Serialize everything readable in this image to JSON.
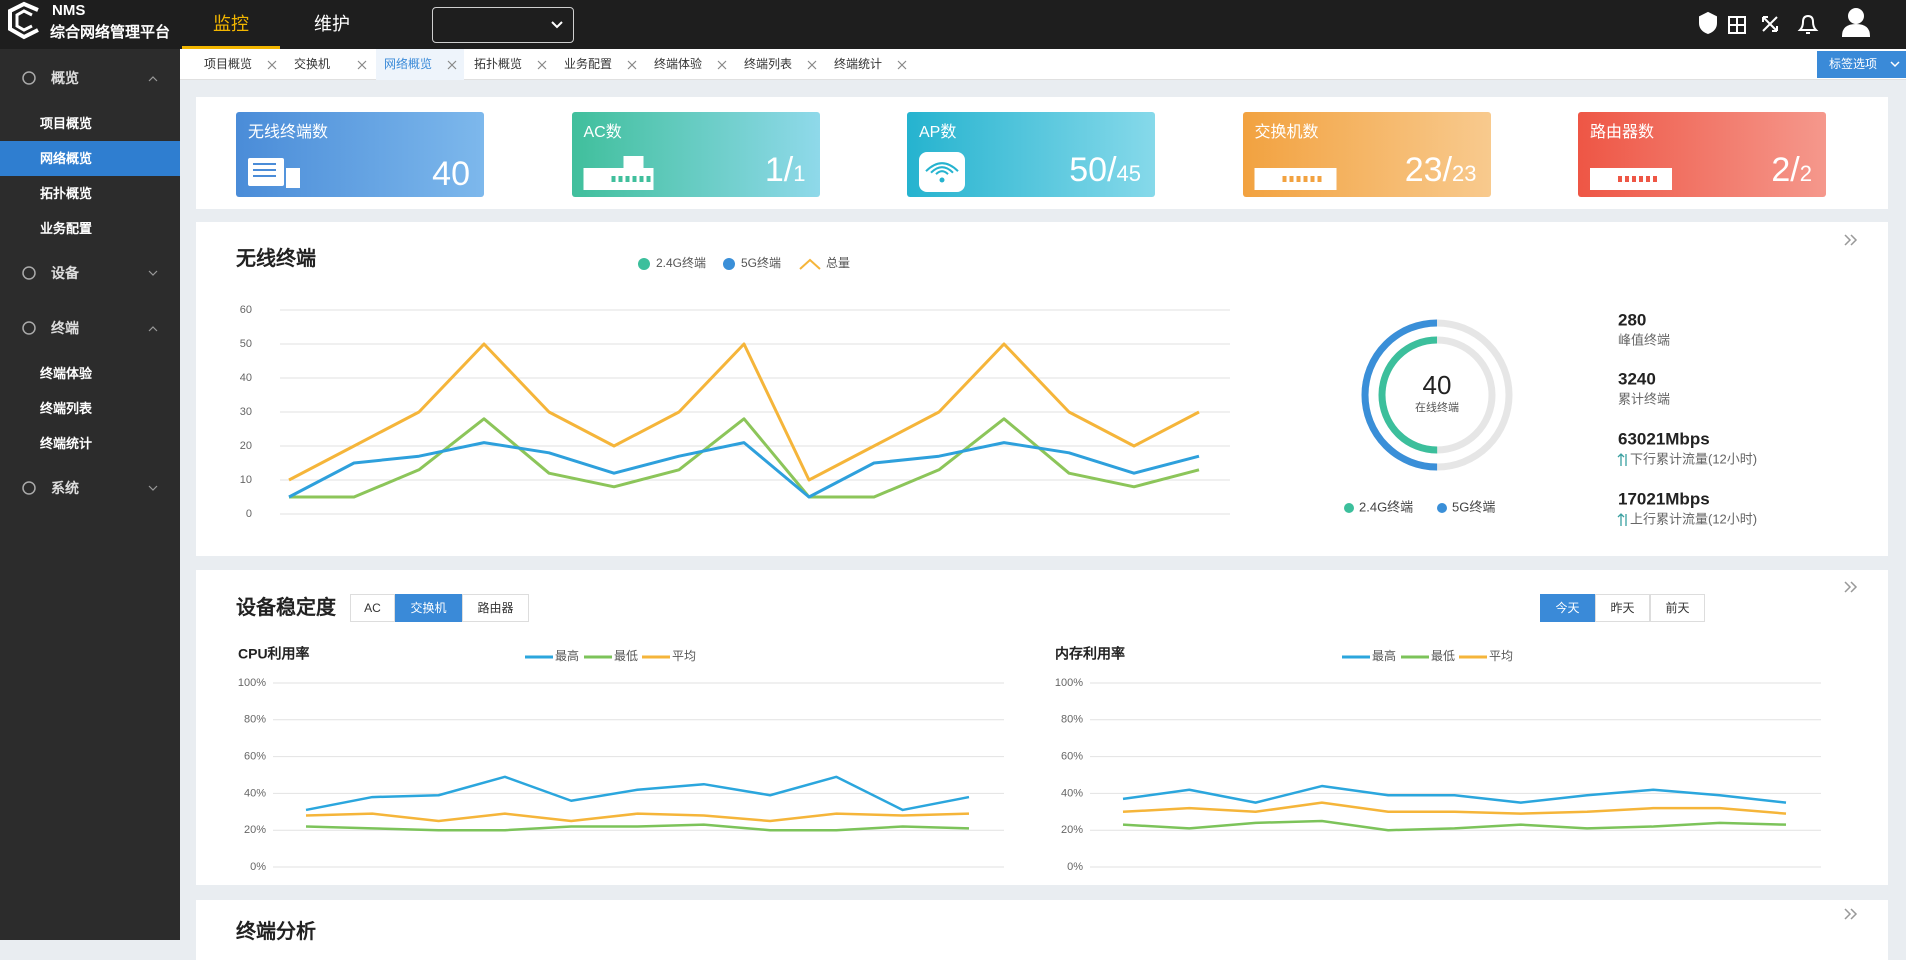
{
  "header": {
    "logo_top": "NMS",
    "logo_bottom": "综合网络管理平台",
    "nav": [
      "监控",
      "维护"
    ],
    "active_nav": 0
  },
  "sidebar": {
    "groups": [
      {
        "label": "概览",
        "items": [
          "项目概览",
          "网络概览",
          "拓扑概览",
          "业务配置"
        ],
        "active_item": 1
      },
      {
        "label": "设备",
        "items": []
      },
      {
        "label": "终端",
        "items": [
          "终端体验",
          "终端列表",
          "终端统计"
        ]
      },
      {
        "label": "系统",
        "items": []
      }
    ]
  },
  "tabs": {
    "items": [
      "项目概览",
      "交换机",
      "网络概览",
      "拓扑概览",
      "业务配置",
      "终端体验",
      "终端列表",
      "终端统计"
    ],
    "active": 2,
    "options": "标签选项"
  },
  "stats": [
    {
      "label": "无线终端数",
      "value": 40,
      "colors": [
        "#4a8cd8",
        "#7db8ec"
      ]
    },
    {
      "label": "AC数",
      "value": 1,
      "slash": "/",
      "total": 1,
      "colors": [
        "#40bf9c",
        "#8fd9ea"
      ]
    },
    {
      "label": "AP数",
      "value": 50,
      "slash": "/",
      "total": 45,
      "colors": [
        "#25b3cf",
        "#86d9ea"
      ]
    },
    {
      "label": "交换机数",
      "value": 23,
      "slash": "/",
      "total": 23,
      "colors": [
        "#f2a240",
        "#f8ca8e"
      ]
    },
    {
      "label": "路由器数",
      "value": 2,
      "slash": "/",
      "total": 2,
      "colors": [
        "#ee5645",
        "#f5988c"
      ]
    }
  ],
  "wireless": {
    "title": "无线终端",
    "chart": {
      "type": "line",
      "series": [
        {
          "name": "2.4G终端",
          "color": "#8cc55a",
          "marker": "circle",
          "marker_color": "#3cbf9c",
          "values": [
            5,
            5,
            13,
            28,
            12,
            8,
            13,
            28,
            5,
            5,
            13,
            28,
            12,
            8,
            13
          ]
        },
        {
          "name": "5G终端",
          "color": "#2ea0dc",
          "marker": "circle",
          "marker_color": "#3a8fd8",
          "values": [
            5,
            15,
            17,
            21,
            18,
            12,
            17,
            21,
            5,
            15,
            17,
            21,
            18,
            12,
            17
          ]
        },
        {
          "name": "总量",
          "color": "#f5b53a",
          "marker": "line",
          "marker_color": "#f5b53a",
          "values": [
            10,
            20,
            30,
            50,
            30,
            20,
            30,
            50,
            10,
            20,
            30,
            50,
            30,
            20,
            30
          ]
        }
      ],
      "ylim": [
        0,
        60
      ],
      "yticks": [
        0,
        10,
        20,
        30,
        40,
        50,
        60
      ],
      "grid": true
    },
    "donut": {
      "type": "pie",
      "center_value": 40,
      "center_label": "在线终端",
      "series": [
        {
          "name": "2.4G终端",
          "color": "#3cbf9c",
          "value": 20
        },
        {
          "name": "5G终端",
          "color": "#3a8fd8",
          "value": 20
        }
      ]
    },
    "metrics": [
      {
        "value": 280,
        "label": "峰值终端"
      },
      {
        "value": 3240,
        "label": "累计终端"
      },
      {
        "value": "63021Mbps",
        "label": "下行累计流量(12小时)"
      },
      {
        "value": "17021Mbps",
        "label": "上行累计流量(12小时)"
      }
    ]
  },
  "stability": {
    "title": "设备稳定度",
    "filters": [
      "AC",
      "交换机",
      "路由器"
    ],
    "active_filter": 1,
    "ranges": [
      "今天",
      "昨天",
      "前天"
    ],
    "active_range": 0,
    "charts": [
      {
        "type": "line",
        "title": "CPU利用率",
        "series": [
          {
            "name": "最高",
            "color": "#2ba6dd",
            "values": [
              31,
              38,
              39,
              49,
              36,
              42,
              45,
              39,
              49,
              31,
              38
            ]
          },
          {
            "name": "最低",
            "color": "#7cc35a",
            "values": [
              22,
              21,
              20,
              20,
              22,
              22,
              23,
              20,
              20,
              22,
              21
            ]
          },
          {
            "name": "平均",
            "color": "#f5b53a",
            "values": [
              28,
              29,
              25,
              29,
              25,
              29,
              28,
              25,
              29,
              28,
              29
            ]
          }
        ],
        "ylim": [
          0,
          100
        ],
        "yticks": [
          {
            "value": 0,
            "label": "0%"
          },
          {
            "value": 20,
            "label": "20%"
          },
          {
            "value": 40,
            "label": "40%"
          },
          {
            "value": 60,
            "label": "60%"
          },
          {
            "value": 80,
            "label": "80%"
          },
          {
            "value": 100,
            "label": "100%"
          }
        ],
        "grid": true
      },
      {
        "type": "line",
        "title": "内存利用率",
        "series": [
          {
            "name": "最高",
            "color": "#2ba6dd",
            "values": [
              37,
              42,
              35,
              44,
              39,
              39,
              35,
              39,
              42,
              39,
              35
            ]
          },
          {
            "name": "最低",
            "color": "#7cc35a",
            "values": [
              23,
              21,
              24,
              25,
              20,
              21,
              23,
              21,
              22,
              24,
              23
            ]
          },
          {
            "name": "平均",
            "color": "#f5b53a",
            "values": [
              30,
              32,
              30,
              35,
              30,
              30,
              29,
              30,
              32,
              32,
              29
            ]
          }
        ],
        "ylim": [
          0,
          100
        ],
        "yticks": [
          {
            "value": 0,
            "label": "0%"
          },
          {
            "value": 20,
            "label": "20%"
          },
          {
            "value": 40,
            "label": "40%"
          },
          {
            "value": 60,
            "label": "60%"
          },
          {
            "value": 80,
            "label": "80%"
          },
          {
            "value": 100,
            "label": "100%"
          }
        ],
        "grid": true
      }
    ]
  },
  "analysis": {
    "title": "终端分析"
  }
}
